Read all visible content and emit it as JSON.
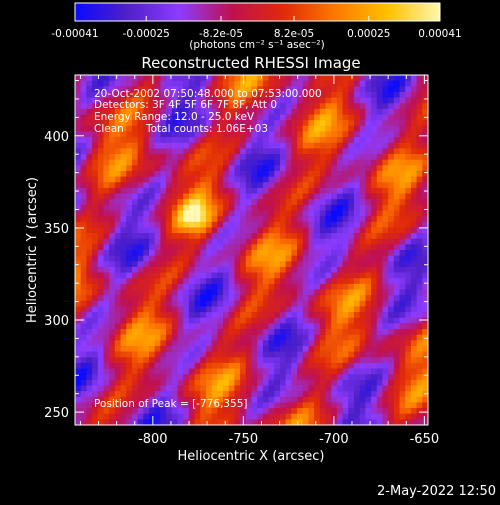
{
  "colorbar": {
    "tick_labels": [
      "-0.00041",
      "-0.00025",
      "-8.2e-05",
      "8.2e-05",
      "0.00025",
      "0.00041"
    ],
    "tick_values": [
      -0.00041,
      -0.00025,
      -8.2e-05,
      8.2e-05,
      0.00025,
      0.00041
    ],
    "range": [
      -0.00041,
      0.00041
    ],
    "unit_label": "(photons cm⁻² s⁻¹ asec⁻²)",
    "stops": [
      "#0a0aff",
      "#5020c8",
      "#8c3cff",
      "#c01050",
      "#e02a08",
      "#ff7a00",
      "#ffc000",
      "#fff8b0"
    ]
  },
  "chart_data": {
    "type": "heatmap",
    "title": "Reconstructed RHESSI Image",
    "xlabel": "Heliocentric X (arcsec)",
    "ylabel": "Heliocentric Y (arcsec)",
    "xlim": [
      -843,
      -648
    ],
    "ylim": [
      243,
      433
    ],
    "x_ticks": [
      -800,
      -750,
      -700,
      -650
    ],
    "y_ticks": [
      250,
      300,
      350,
      400
    ],
    "x_tick_labels": [
      "-800",
      "-750",
      "-700",
      "-650"
    ],
    "y_tick_labels": [
      "250",
      "300",
      "350",
      "400"
    ],
    "annotations": [
      "20-Oct-2002 07:50:48.000 to 07:53:00.000",
      "Detectors: 3F 4F 5F 6F 7F 8F, Att 0",
      "Energy Range: 12.0 - 25.0 keV",
      "Clean",
      "Total counts: 1.06E+03"
    ],
    "peak_label": "Position of Peak = [-776,355]",
    "peak": [
      -776,
      355
    ],
    "grid": false
  },
  "footer": {
    "timestamp": "2-May-2022 12:50"
  }
}
